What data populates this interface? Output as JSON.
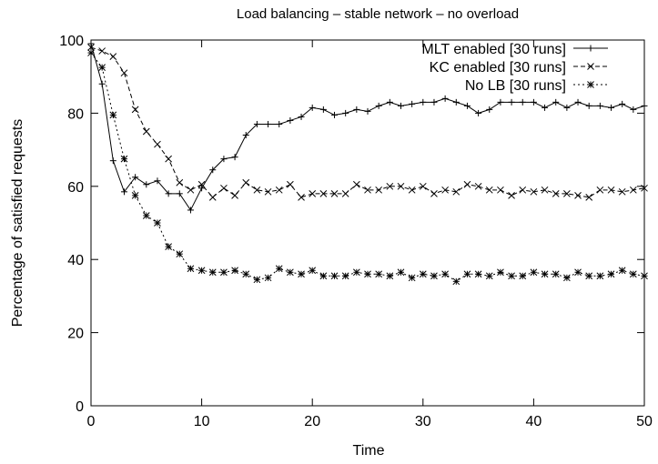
{
  "chart_data": {
    "type": "line",
    "title": "Load balancing – stable network – no overload",
    "xlabel": "Time",
    "ylabel": "Percentage of satisfied requests",
    "xlim": [
      0,
      50
    ],
    "ylim": [
      0,
      100
    ],
    "x_ticks": [
      "0",
      "10",
      "20",
      "30",
      "40",
      "50"
    ],
    "y_ticks": [
      "0",
      "20",
      "40",
      "60",
      "80",
      "100"
    ],
    "grid": false,
    "legend_position": "top-right",
    "x": [
      0,
      1,
      2,
      3,
      4,
      5,
      6,
      7,
      8,
      9,
      10,
      11,
      12,
      13,
      14,
      15,
      16,
      17,
      18,
      19,
      20,
      21,
      22,
      23,
      24,
      25,
      26,
      27,
      28,
      29,
      30,
      31,
      32,
      33,
      34,
      35,
      36,
      37,
      38,
      39,
      40,
      41,
      42,
      43,
      44,
      45,
      46,
      47,
      48,
      49,
      50
    ],
    "series": [
      {
        "name": "MLT enabled [30 runs]",
        "line_style": "solid",
        "marker": "+",
        "values": [
          99,
          88,
          67,
          58.5,
          62.5,
          60.5,
          61.5,
          58,
          58,
          53.5,
          59.5,
          64.5,
          67.5,
          68,
          74,
          77,
          77,
          77,
          78,
          79,
          81.5,
          81,
          79.5,
          80,
          81,
          80.5,
          82,
          83,
          82,
          82.5,
          83,
          83,
          84,
          83,
          82,
          80,
          81,
          83,
          83,
          83,
          83,
          81.5,
          83,
          81.5,
          83,
          82,
          82,
          81.5,
          82.5,
          81,
          82
        ]
      },
      {
        "name": "KC enabled [30 runs]",
        "line_style": "dashed",
        "marker": "x",
        "values": [
          98,
          97,
          95.5,
          91,
          81,
          75,
          71.5,
          67.5,
          61,
          59,
          60.5,
          57,
          59.5,
          57.5,
          61,
          59,
          58.5,
          59,
          60.5,
          57,
          58,
          58,
          58,
          58,
          60.5,
          59,
          59,
          60,
          60,
          59,
          60,
          58,
          59,
          58.5,
          60.5,
          60,
          59,
          59,
          57.5,
          59,
          58.5,
          59,
          58,
          58,
          57.5,
          57,
          59,
          59,
          58.5,
          59,
          59.5
        ]
      },
      {
        "name": "No LB [30 runs]",
        "line_style": "dotted",
        "marker": "*",
        "values": [
          96.5,
          92.5,
          79.5,
          67.5,
          57.5,
          52,
          50,
          43.5,
          41.5,
          37.5,
          37,
          36.5,
          36.5,
          37,
          36,
          34.5,
          35,
          37.5,
          36.5,
          36,
          37,
          35.5,
          35.5,
          35.5,
          36.5,
          36,
          36,
          35.5,
          36.5,
          35,
          36,
          35.5,
          36,
          34,
          36,
          36,
          35.5,
          36.5,
          35.5,
          35.5,
          36.5,
          36,
          36,
          35,
          36.5,
          35.5,
          35.5,
          36,
          37,
          36,
          35.5
        ]
      }
    ]
  }
}
